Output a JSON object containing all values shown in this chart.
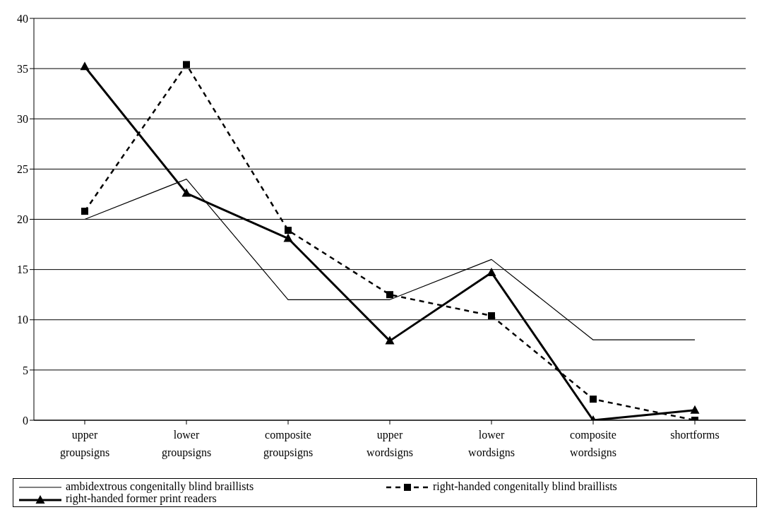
{
  "chart_data": {
    "type": "line",
    "categories": [
      "upper groupsigns",
      "lower groupsigns",
      "composite groupsigns",
      "upper wordsigns",
      "lower wordsigns",
      "composite wordsigns",
      "shortforms"
    ],
    "ylim": [
      0,
      40
    ],
    "yticks": [
      0,
      5,
      10,
      15,
      20,
      25,
      30,
      35,
      40
    ],
    "grid": "y",
    "legend": "bottom",
    "series": [
      {
        "name": "ambidextrous congenitally blind braillists",
        "color": "#000000",
        "values": [
          20,
          24,
          12,
          12,
          16,
          8,
          8
        ],
        "marker": "none",
        "line_style": "solid"
      },
      {
        "name": "right-handed congenitally blind braillists",
        "color": "#000000",
        "values": [
          20.8,
          35.4,
          18.9,
          12.5,
          10.4,
          2.1,
          0
        ],
        "marker": "square",
        "line_style": "dashed"
      },
      {
        "name": "right-handed former print readers",
        "color": "#000000",
        "values": [
          35.2,
          22.6,
          18.1,
          7.9,
          14.7,
          0,
          1
        ],
        "marker": "triangle",
        "line_style": "solid"
      }
    ]
  }
}
